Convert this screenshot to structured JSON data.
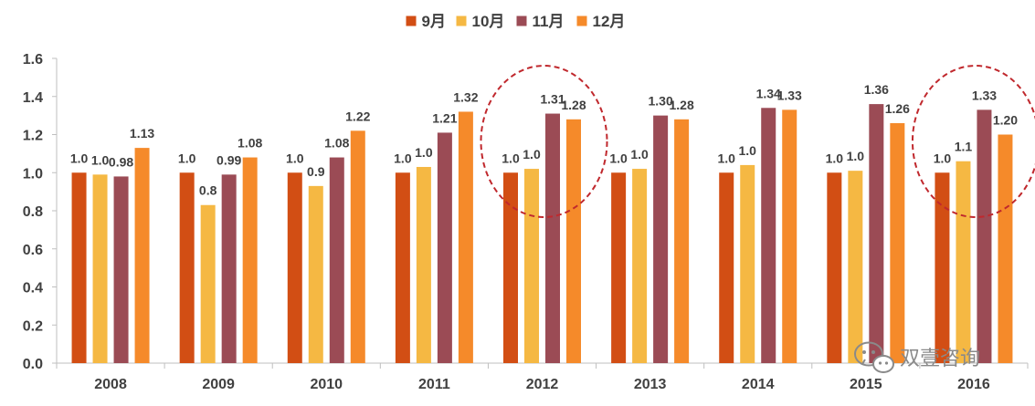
{
  "chart_data": {
    "type": "bar",
    "title": "",
    "xlabel": "",
    "ylabel": "",
    "ylim": [
      0,
      1.6
    ],
    "yticks": [
      "0.0",
      "0.2",
      "0.4",
      "0.6",
      "0.8",
      "1.0",
      "1.2",
      "1.4",
      "1.6"
    ],
    "grid": false,
    "legend_position": "top",
    "categories": [
      "2008",
      "2009",
      "2010",
      "2011",
      "2012",
      "2013",
      "2014",
      "2015",
      "2016"
    ],
    "series": [
      {
        "name": "9月",
        "color": "#D24E14",
        "values": [
          1.0,
          1.0,
          1.0,
          1.0,
          1.0,
          1.0,
          1.0,
          1.0,
          1.0
        ],
        "labels": [
          "1.0",
          "1.0",
          "1.0",
          "1.0",
          "1.0",
          "1.0",
          "1.0",
          "1.0",
          "1.0"
        ]
      },
      {
        "name": "10月",
        "color": "#F5B843",
        "values": [
          0.99,
          0.83,
          0.93,
          1.03,
          1.02,
          1.02,
          1.04,
          1.01,
          1.06
        ],
        "labels": [
          "1.0",
          "0.8",
          "0.9",
          "1.0",
          "1.0",
          "1.0",
          "1.0",
          "1.0",
          "1.1"
        ]
      },
      {
        "name": "11月",
        "color": "#9B4B55",
        "values": [
          0.98,
          0.99,
          1.08,
          1.21,
          1.31,
          1.3,
          1.34,
          1.36,
          1.33
        ],
        "labels": [
          "0.98",
          "0.99",
          "1.08",
          "1.21",
          "1.31",
          "1.30",
          "1.34",
          "1.36",
          "1.33"
        ]
      },
      {
        "name": "12月",
        "color": "#F58A2A",
        "values": [
          1.13,
          1.08,
          1.22,
          1.32,
          1.28,
          1.28,
          1.33,
          1.26,
          1.2
        ],
        "labels": [
          "1.13",
          "1.08",
          "1.22",
          "1.32",
          "1.28",
          "1.28",
          "1.33",
          "1.26",
          "1.20"
        ]
      }
    ],
    "annotations": [
      {
        "type": "dashed-ellipse",
        "category": "2012",
        "color": "#C0282D"
      },
      {
        "type": "dashed-ellipse",
        "category": "2016",
        "color": "#C0282D"
      }
    ]
  },
  "watermark": {
    "text": "双壹咨询",
    "icon": "wechat-icon"
  }
}
